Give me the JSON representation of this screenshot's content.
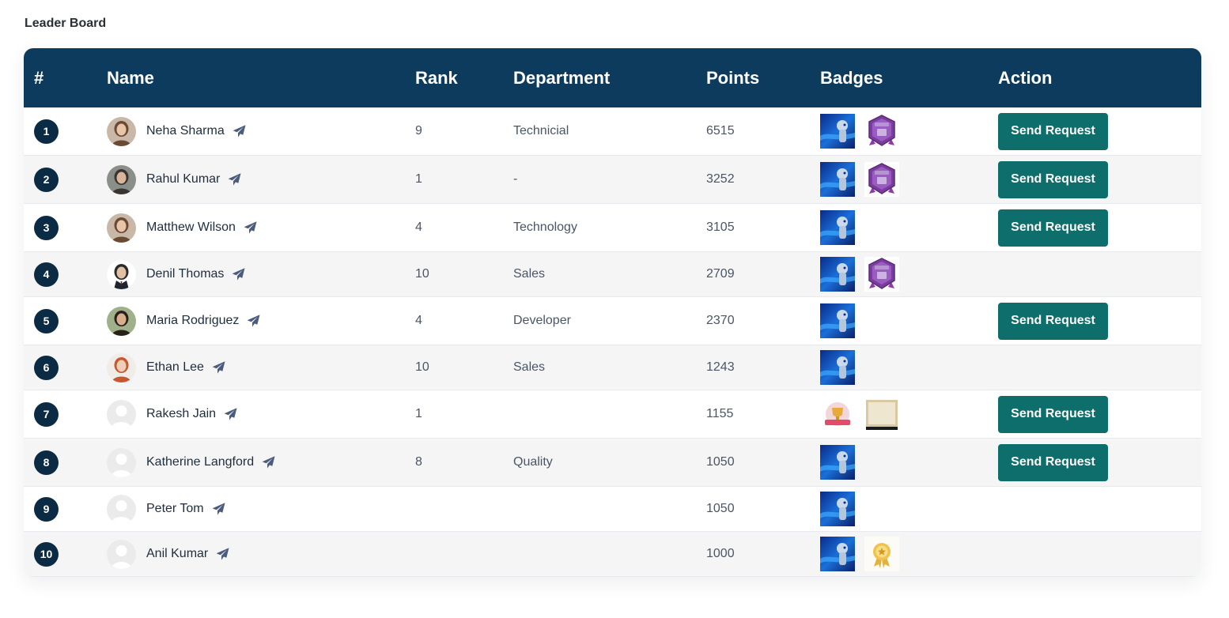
{
  "page_title": "Leader Board",
  "columns": [
    "#",
    "Name",
    "Rank",
    "Department",
    "Points",
    "Badges",
    "Action"
  ],
  "colors": {
    "header_bg": "#0d3b5e",
    "number_circle": "#0b2a44",
    "button_bg": "#0e6e6b",
    "send_icon": "#4b5b7c"
  },
  "rows": [
    {
      "num": "1",
      "name": "Neha Sharma",
      "rank": "9",
      "department": "Technicial",
      "points": "6515",
      "avatar": "photo-woman-1",
      "badges": [
        "robot-badge",
        "profile-complete-badge"
      ],
      "action": "Send Request"
    },
    {
      "num": "2",
      "name": "Rahul Kumar",
      "rank": "1",
      "department": "-",
      "points": "3252",
      "avatar": "photo-man-1",
      "badges": [
        "robot-badge",
        "profile-complete-badge"
      ],
      "action": "Send Request"
    },
    {
      "num": "3",
      "name": "Matthew Wilson",
      "rank": "4",
      "department": "Technology",
      "points": "3105",
      "avatar": "photo-woman-1",
      "badges": [
        "robot-badge"
      ],
      "action": "Send Request"
    },
    {
      "num": "4",
      "name": "Denil Thomas",
      "rank": "10",
      "department": "Sales",
      "points": "2709",
      "avatar": "photo-man-suit",
      "badges": [
        "robot-badge",
        "profile-complete-badge"
      ],
      "action": ""
    },
    {
      "num": "5",
      "name": "Maria Rodriguez",
      "rank": "4",
      "department": "Developer",
      "points": "2370",
      "avatar": "photo-woman-2",
      "badges": [
        "robot-badge"
      ],
      "action": "Send Request"
    },
    {
      "num": "6",
      "name": "Ethan Lee",
      "rank": "10",
      "department": "Sales",
      "points": "1243",
      "avatar": "photo-woman-red",
      "badges": [
        "robot-badge"
      ],
      "action": ""
    },
    {
      "num": "7",
      "name": "Rakesh Jain",
      "rank": "1",
      "department": "",
      "points": "1155",
      "avatar": "default-avatar",
      "badges": [
        "trophy-badge",
        "certificate-badge"
      ],
      "action": "Send Request"
    },
    {
      "num": "8",
      "name": "Katherine Langford",
      "rank": "8",
      "department": "Quality",
      "points": "1050",
      "avatar": "default-avatar",
      "badges": [
        "robot-badge"
      ],
      "action": "Send Request"
    },
    {
      "num": "9",
      "name": "Peter Tom",
      "rank": "",
      "department": "",
      "points": "1050",
      "avatar": "default-avatar",
      "badges": [
        "robot-badge"
      ],
      "action": ""
    },
    {
      "num": "10",
      "name": "Anil Kumar",
      "rank": "",
      "department": "",
      "points": "1000",
      "avatar": "default-avatar",
      "badges": [
        "robot-badge",
        "award-ribbon-badge"
      ],
      "action": ""
    }
  ]
}
